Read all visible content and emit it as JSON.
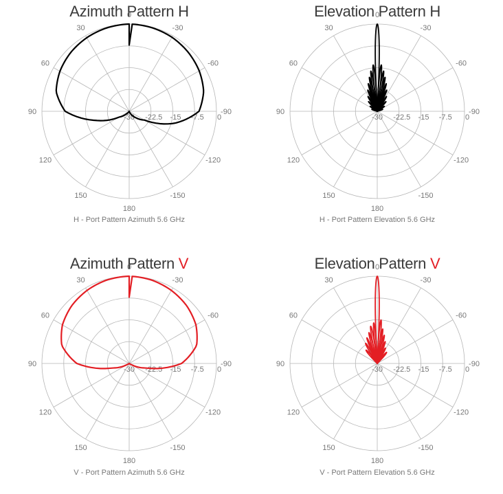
{
  "charts": [
    {
      "title": "Azimuth Pattern",
      "title_suffix": "H",
      "caption": "H - Port Pattern Azimuth 5.6 GHz"
    },
    {
      "title": "Elevation Pattern",
      "title_suffix": "H",
      "caption": "H - Port Pattern Elevation 5.6 GHz"
    },
    {
      "title": "Azimuth Pattern",
      "title_suffix": "V",
      "caption": "V - Port Pattern Azimuth 5.6 GHz"
    },
    {
      "title": "Elevation Pattern",
      "title_suffix": "V",
      "caption": "V - Port Pattern Elevation 5.6 GHz"
    }
  ],
  "colors": {
    "h_port": "#000000",
    "v_port": "#e31e24",
    "grid": "#b5b5b5",
    "text": "#3a3a3a",
    "tick_text": "#777777"
  },
  "chart_data": [
    {
      "type": "polar",
      "title": "Azimuth Pattern H",
      "port": "H",
      "color": "#000000",
      "radial_ticks": [
        "-30",
        "-22.5",
        "-15",
        "-7.5",
        "0"
      ],
      "radial_range": [
        -30,
        0
      ],
      "angle_ticks": [
        "0",
        "-30",
        "-60",
        "-90",
        "-120",
        "-150",
        "180",
        "150",
        "120",
        "90",
        "60",
        "30"
      ],
      "angle_direction": "counterclockwise-positive, 0 at top",
      "series": [
        {
          "angles": [
            0,
            15,
            30,
            45,
            60,
            75,
            90,
            105,
            120,
            135,
            150,
            165,
            180,
            195,
            210,
            225,
            240,
            255,
            270,
            285,
            300,
            315,
            330,
            345
          ],
          "values": [
            0,
            -0.3,
            -0.8,
            -1.5,
            -2.5,
            -4,
            -8,
            -18,
            -26,
            -29,
            -30,
            -30,
            -30,
            -30,
            -29,
            -27,
            -24,
            -14,
            -6,
            -3.5,
            -2.2,
            -1.3,
            -0.6,
            -0.2
          ]
        }
      ],
      "grid": true
    },
    {
      "type": "polar",
      "title": "Elevation Pattern H",
      "port": "H",
      "color": "#000000",
      "radial_ticks": [
        "-30",
        "-22.5",
        "-15",
        "-7.5",
        "0"
      ],
      "radial_range": [
        -30,
        0
      ],
      "angle_ticks": [
        "0",
        "-30",
        "-60",
        "-90",
        "-120",
        "-150",
        "180",
        "150",
        "120",
        "90",
        "60",
        "30"
      ],
      "angle_direction": "counterclockwise-positive, 0 at top",
      "series": [
        {
          "lobes": [
            {
              "angle": 0,
              "value": 0,
              "width": 3
            },
            {
              "angle": 5,
              "value": -14,
              "width": 2.5
            },
            {
              "angle": -5,
              "value": -14,
              "width": 2.5
            },
            {
              "angle": 9,
              "value": -16,
              "width": 2.5
            },
            {
              "angle": -9,
              "value": -16,
              "width": 2.5
            },
            {
              "angle": 13,
              "value": -18,
              "width": 2.5
            },
            {
              "angle": -13,
              "value": -18,
              "width": 2.5
            },
            {
              "angle": 18,
              "value": -20,
              "width": 2.5
            },
            {
              "angle": -18,
              "value": -20,
              "width": 2.5
            },
            {
              "angle": 24,
              "value": -22,
              "width": 3
            },
            {
              "angle": -24,
              "value": -22,
              "width": 3
            },
            {
              "angle": 32,
              "value": -24,
              "width": 3
            },
            {
              "angle": -32,
              "value": -24,
              "width": 3
            },
            {
              "angle": 42,
              "value": -25.5,
              "width": 3
            },
            {
              "angle": -42,
              "value": -25.5,
              "width": 3
            },
            {
              "angle": 55,
              "value": -27,
              "width": 4
            },
            {
              "angle": -55,
              "value": -27,
              "width": 4
            },
            {
              "angle": 70,
              "value": -28,
              "width": 5
            },
            {
              "angle": -70,
              "value": -28,
              "width": 5
            }
          ],
          "floor": -30
        }
      ],
      "grid": true
    },
    {
      "type": "polar",
      "title": "Azimuth Pattern V",
      "port": "V",
      "color": "#e31e24",
      "radial_ticks": [
        "-30",
        "-22.5",
        "-15",
        "-7.5",
        "0"
      ],
      "radial_range": [
        -30,
        0
      ],
      "angle_ticks": [
        "0",
        "-30",
        "-60",
        "-90",
        "-120",
        "-150",
        "180",
        "150",
        "120",
        "90",
        "60",
        "30"
      ],
      "angle_direction": "counterclockwise-positive, 0 at top",
      "series": [
        {
          "angles": [
            0,
            15,
            30,
            45,
            60,
            75,
            90,
            105,
            120,
            135,
            150,
            165,
            180,
            195,
            210,
            225,
            240,
            255,
            270,
            285,
            300,
            315,
            330,
            345
          ],
          "values": [
            0,
            -0.3,
            -1,
            -2,
            -3.5,
            -6,
            -12,
            -24,
            -29.5,
            -30,
            -30,
            -30,
            -30,
            -30,
            -30,
            -30,
            -29.5,
            -24,
            -12,
            -6,
            -3.5,
            -2,
            -1,
            -0.3
          ]
        }
      ],
      "grid": true
    },
    {
      "type": "polar",
      "title": "Elevation Pattern V",
      "port": "V",
      "color": "#e31e24",
      "radial_ticks": [
        "-30",
        "-22.5",
        "-15",
        "-7.5",
        "0"
      ],
      "radial_range": [
        -30,
        0
      ],
      "angle_ticks": [
        "0",
        "-30",
        "-60",
        "-90",
        "-120",
        "-150",
        "180",
        "150",
        "120",
        "90",
        "60",
        "30"
      ],
      "angle_direction": "counterclockwise-positive, 0 at top",
      "series": [
        {
          "lobes": [
            {
              "angle": 0,
              "value": 0,
              "width": 3
            },
            {
              "angle": 5,
              "value": -16,
              "width": 2.5
            },
            {
              "angle": -5,
              "value": -15,
              "width": 2.5
            },
            {
              "angle": 10,
              "value": -17,
              "width": 3
            },
            {
              "angle": -9,
              "value": -18,
              "width": 2.5
            },
            {
              "angle": 15,
              "value": -19,
              "width": 3
            },
            {
              "angle": -14,
              "value": -20,
              "width": 3
            },
            {
              "angle": 22,
              "value": -20.5,
              "width": 3
            },
            {
              "angle": -20,
              "value": -22,
              "width": 3
            },
            {
              "angle": 30,
              "value": -22,
              "width": 4
            },
            {
              "angle": -28,
              "value": -24,
              "width": 4
            },
            {
              "angle": 40,
              "value": -24,
              "width": 5
            },
            {
              "angle": -40,
              "value": -25,
              "width": 5
            }
          ],
          "floor": -30
        }
      ],
      "grid": true
    }
  ]
}
